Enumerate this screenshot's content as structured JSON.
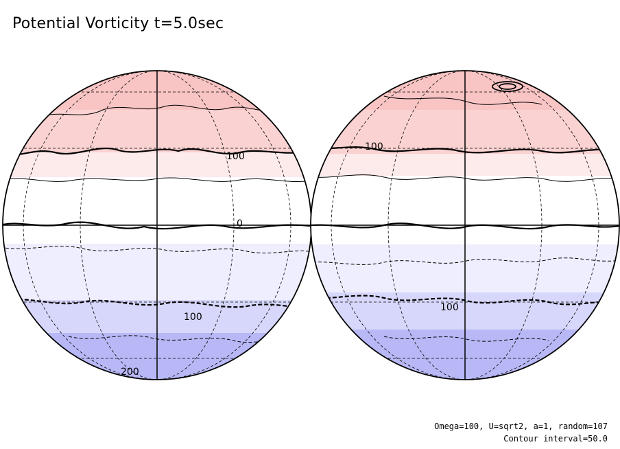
{
  "title": "Potential Vorticity t=5.0sec",
  "footer": {
    "params": "Omega=100, U=sqrt2, a=1, random=107",
    "contour_interval": "Contour interval=50.0"
  },
  "colors": {
    "band_north_3": "#f8c4c4",
    "band_north_2": "#fad2d2",
    "band_north_1": "#fdeaea",
    "band_zero": "#ffffff",
    "band_south_1": "#eeeeff",
    "band_south_2": "#d7d7fb",
    "band_south_3": "#b8b8f6"
  },
  "hemispheres": [
    {
      "contour_labels": [
        "100",
        "0",
        "100",
        "200"
      ]
    },
    {
      "contour_labels": [
        "100",
        "100"
      ]
    }
  ]
}
